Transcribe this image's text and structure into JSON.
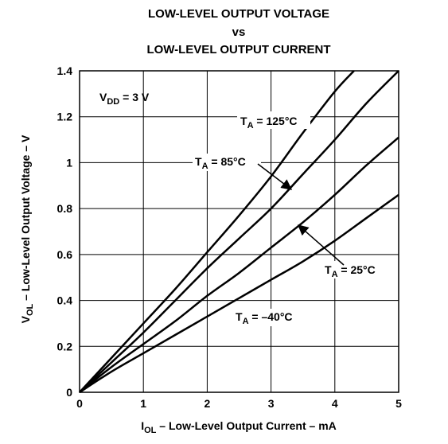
{
  "chart_data": {
    "type": "line",
    "title_lines": [
      "LOW-LEVEL OUTPUT VOLTAGE",
      "vs",
      "LOW-LEVEL OUTPUT CURRENT"
    ],
    "xlabel": {
      "prefix": "I",
      "sub": "OL",
      "rest": " – Low-Level Output Current – mA"
    },
    "ylabel": {
      "prefix": "V",
      "sub": "OL",
      "rest": "  – Low-Level Output Voltage – V"
    },
    "xlim": [
      0,
      5
    ],
    "ylim": [
      0,
      1.4
    ],
    "x_ticks": [
      0,
      1,
      2,
      3,
      4,
      5
    ],
    "x_tick_labels": [
      "0",
      "1",
      "2",
      "3",
      "4",
      "5"
    ],
    "y_ticks": [
      0,
      0.2,
      0.4,
      0.6,
      0.8,
      1.0,
      1.2,
      1.4
    ],
    "y_tick_labels": [
      "0",
      "0.2",
      "0.4",
      "0.6",
      "0.8",
      "1",
      "1.2",
      "1.4"
    ],
    "grid": true,
    "condition": {
      "prefix": "V",
      "sub": "DD",
      "rest": " = 3 V"
    },
    "series": [
      {
        "name": "TA = 125°C",
        "label": {
          "prefix": "T",
          "sub": "A",
          "rest": " = 125°C"
        },
        "x": [
          0,
          0.5,
          1,
          1.5,
          2,
          2.5,
          3,
          3.5,
          4,
          4.3
        ],
        "y": [
          0,
          0.15,
          0.3,
          0.45,
          0.61,
          0.77,
          0.94,
          1.13,
          1.31,
          1.4
        ]
      },
      {
        "name": "TA = 85°C",
        "label": {
          "prefix": "T",
          "sub": "A",
          "rest": " = 85°C"
        },
        "x": [
          0,
          0.5,
          1,
          1.5,
          2,
          2.5,
          3,
          3.5,
          4,
          4.5,
          5
        ],
        "y": [
          0,
          0.13,
          0.26,
          0.4,
          0.54,
          0.67,
          0.8,
          0.95,
          1.1,
          1.26,
          1.4
        ]
      },
      {
        "name": "TA = 25°C",
        "label": {
          "prefix": "T",
          "sub": "A",
          "rest": " = 25°C"
        },
        "x": [
          0,
          0.5,
          1,
          1.5,
          2,
          2.5,
          3,
          3.5,
          4,
          4.5,
          5
        ],
        "y": [
          0,
          0.11,
          0.21,
          0.31,
          0.42,
          0.52,
          0.63,
          0.74,
          0.86,
          0.99,
          1.11
        ]
      },
      {
        "name": "TA = –40°C",
        "label": {
          "prefix": "T",
          "sub": "A",
          "rest": " = –40°C"
        },
        "x": [
          0,
          0.5,
          1,
          1.5,
          2,
          2.5,
          3,
          3.5,
          4,
          4.5,
          5
        ],
        "y": [
          0,
          0.09,
          0.17,
          0.25,
          0.33,
          0.41,
          0.49,
          0.57,
          0.66,
          0.76,
          0.86
        ]
      }
    ],
    "line_color": "#000000",
    "grid_color": "#000000",
    "background": "#ffffff"
  }
}
